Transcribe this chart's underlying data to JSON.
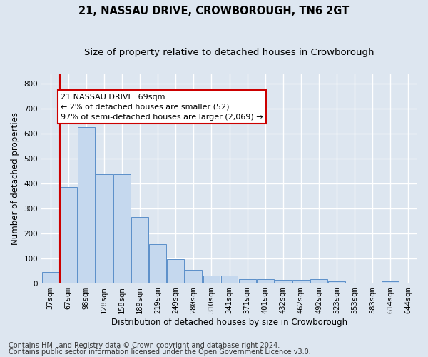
{
  "title": "21, NASSAU DRIVE, CROWBOROUGH, TN6 2GT",
  "subtitle": "Size of property relative to detached houses in Crowborough",
  "xlabel": "Distribution of detached houses by size in Crowborough",
  "ylabel": "Number of detached properties",
  "categories": [
    "37sqm",
    "67sqm",
    "98sqm",
    "128sqm",
    "158sqm",
    "189sqm",
    "219sqm",
    "249sqm",
    "280sqm",
    "310sqm",
    "341sqm",
    "371sqm",
    "401sqm",
    "432sqm",
    "462sqm",
    "492sqm",
    "523sqm",
    "553sqm",
    "583sqm",
    "614sqm",
    "644sqm"
  ],
  "values": [
    45,
    385,
    625,
    435,
    435,
    265,
    155,
    97,
    52,
    29,
    29,
    17,
    15,
    12,
    12,
    15,
    8,
    0,
    0,
    8,
    0
  ],
  "bar_color": "#c5d8ee",
  "bar_edge_color": "#5b8fc9",
  "vline_color": "#cc0000",
  "vline_x_index": 1,
  "ylim": [
    0,
    840
  ],
  "yticks": [
    0,
    100,
    200,
    300,
    400,
    500,
    600,
    700,
    800
  ],
  "annotation_text": "21 NASSAU DRIVE: 69sqm\n← 2% of detached houses are smaller (52)\n97% of semi-detached houses are larger (2,069) →",
  "annotation_box_facecolor": "#ffffff",
  "annotation_box_edgecolor": "#cc0000",
  "footer_line1": "Contains HM Land Registry data © Crown copyright and database right 2024.",
  "footer_line2": "Contains public sector information licensed under the Open Government Licence v3.0.",
  "fig_facecolor": "#dde6f0",
  "plot_facecolor": "#dde6f0",
  "grid_color": "#ffffff",
  "title_fontsize": 10.5,
  "subtitle_fontsize": 9.5,
  "axis_label_fontsize": 8.5,
  "tick_fontsize": 7.5,
  "annotation_fontsize": 8,
  "footer_fontsize": 7
}
